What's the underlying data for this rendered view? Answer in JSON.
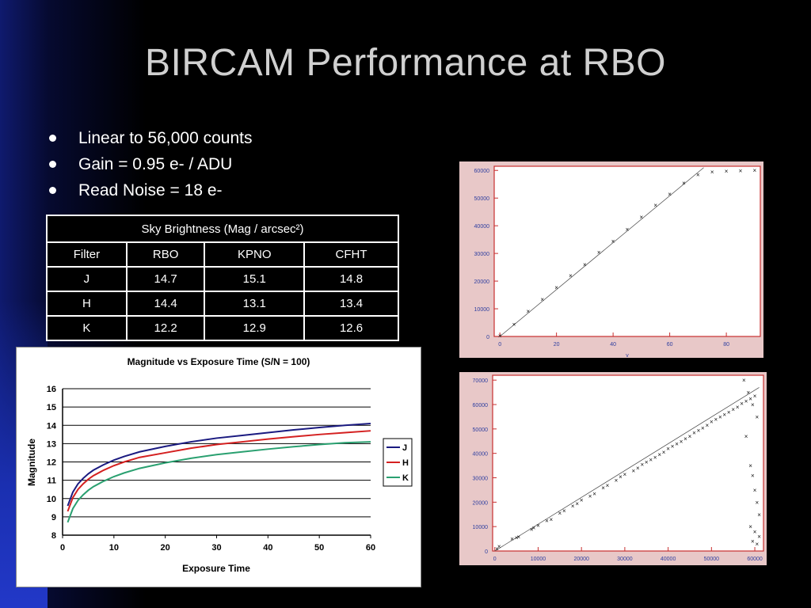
{
  "slide": {
    "title": "BIRCAM Performance at RBO",
    "bullets": [
      "Linear to 56,000 counts",
      "Gain  = 0.95 e- / ADU",
      "Read Noise = 18 e-"
    ]
  },
  "sky_table": {
    "caption": "Sky Brightness  (Mag / arcsec²)",
    "headers": [
      "Filter",
      "RBO",
      "KPNO",
      "CFHT"
    ],
    "rows": [
      [
        "J",
        "14.7",
        "15.1",
        "14.8"
      ],
      [
        "H",
        "14.4",
        "13.1",
        "13.4"
      ],
      [
        "K",
        "12.2",
        "12.9",
        "12.6"
      ]
    ]
  },
  "chart_data": [
    {
      "type": "line",
      "title": "Magnitude vs Exposure Time (S/N = 100)",
      "xlabel": "Exposure Time",
      "ylabel": "Magnitude",
      "xlim": [
        0,
        60
      ],
      "ylim": [
        8,
        16
      ],
      "xticks": [
        0,
        10,
        20,
        30,
        40,
        50,
        60
      ],
      "yticks": [
        8,
        9,
        10,
        11,
        12,
        13,
        14,
        15,
        16
      ],
      "grid": true,
      "legend": "right",
      "x": [
        1,
        2,
        3,
        4,
        5,
        6,
        8,
        10,
        12,
        15,
        20,
        25,
        30,
        35,
        40,
        45,
        50,
        55,
        60
      ],
      "series": [
        {
          "name": "J",
          "color": "#1a1a80",
          "values": [
            9.6,
            10.35,
            10.8,
            11.1,
            11.35,
            11.55,
            11.85,
            12.1,
            12.3,
            12.55,
            12.85,
            13.1,
            13.3,
            13.45,
            13.6,
            13.75,
            13.88,
            14.0,
            14.1
          ]
        },
        {
          "name": "H",
          "color": "#d42020",
          "values": [
            9.3,
            10.05,
            10.5,
            10.8,
            11.05,
            11.25,
            11.55,
            11.8,
            12.0,
            12.25,
            12.5,
            12.75,
            12.95,
            13.1,
            13.25,
            13.38,
            13.5,
            13.6,
            13.7
          ]
        },
        {
          "name": "K",
          "color": "#2aa070",
          "values": [
            8.7,
            9.45,
            9.9,
            10.2,
            10.45,
            10.65,
            10.95,
            11.2,
            11.4,
            11.65,
            11.95,
            12.2,
            12.4,
            12.55,
            12.7,
            12.83,
            12.95,
            13.05,
            13.1
          ]
        }
      ]
    },
    {
      "type": "scatter",
      "xlim": [
        -2,
        92
      ],
      "ylim": [
        0,
        61500
      ],
      "xticks": [
        0,
        20,
        40,
        60,
        80
      ],
      "yticks": [
        0,
        10000,
        20000,
        30000,
        40000,
        50000,
        60000
      ],
      "x_axis_mark": "v",
      "fit_line": {
        "x": [
          0,
          72
        ],
        "y": [
          0,
          61000
        ]
      },
      "points": {
        "x": [
          0,
          5,
          10,
          15,
          20,
          25,
          30,
          35,
          40,
          45,
          50,
          55,
          60,
          65,
          70,
          75,
          80,
          85,
          90
        ],
        "y": [
          300,
          4500,
          9200,
          13500,
          17800,
          22000,
          26000,
          30500,
          34500,
          38800,
          43200,
          47500,
          51500,
          55500,
          58500,
          59500,
          59800,
          59900,
          60000
        ]
      }
    },
    {
      "type": "scatter",
      "xlim": [
        -500,
        62000
      ],
      "ylim": [
        0,
        72000
      ],
      "xticks": [
        0,
        10000,
        20000,
        30000,
        40000,
        50000,
        60000
      ],
      "yticks": [
        0,
        10000,
        20000,
        30000,
        40000,
        50000,
        60000,
        70000
      ],
      "fit_line": {
        "x": [
          0,
          61000
        ],
        "y": [
          0,
          67000
        ]
      },
      "points": {
        "x": [
          500,
          1000,
          4000,
          5000,
          5500,
          8500,
          9000,
          10000,
          12000,
          13000,
          15000,
          16000,
          18000,
          19000,
          20000,
          22000,
          23000,
          25000,
          26000,
          28000,
          29000,
          30000,
          32000,
          33000,
          34000,
          35000,
          36000,
          37000,
          38000,
          39000,
          40000,
          41000,
          42000,
          43000,
          44000,
          45000,
          46000,
          47000,
          48000,
          49000,
          50000,
          51000,
          52000,
          53000,
          54000,
          55000,
          56000,
          57000,
          58000,
          59000,
          60000,
          57500,
          58500,
          59500,
          60500,
          58000,
          59000,
          59500,
          60000,
          60500,
          61000,
          59000,
          60000,
          61000,
          59500,
          60500
        ],
        "y": [
          1000,
          2000,
          5000,
          5500,
          5800,
          9000,
          9500,
          10500,
          12500,
          13000,
          15500,
          16500,
          18500,
          19500,
          21000,
          22500,
          23500,
          26000,
          27000,
          29000,
          30500,
          31500,
          33000,
          34000,
          35500,
          36500,
          37500,
          38500,
          39500,
          40500,
          42000,
          43000,
          44000,
          45000,
          46000,
          47000,
          48500,
          49500,
          50500,
          51500,
          53000,
          54000,
          55000,
          56000,
          57000,
          58000,
          59000,
          60500,
          61500,
          62500,
          63500,
          70000,
          65000,
          60000,
          55000,
          47000,
          35000,
          31000,
          25000,
          20000,
          15000,
          10000,
          8000,
          6000,
          4000,
          3000
        ]
      }
    }
  ]
}
